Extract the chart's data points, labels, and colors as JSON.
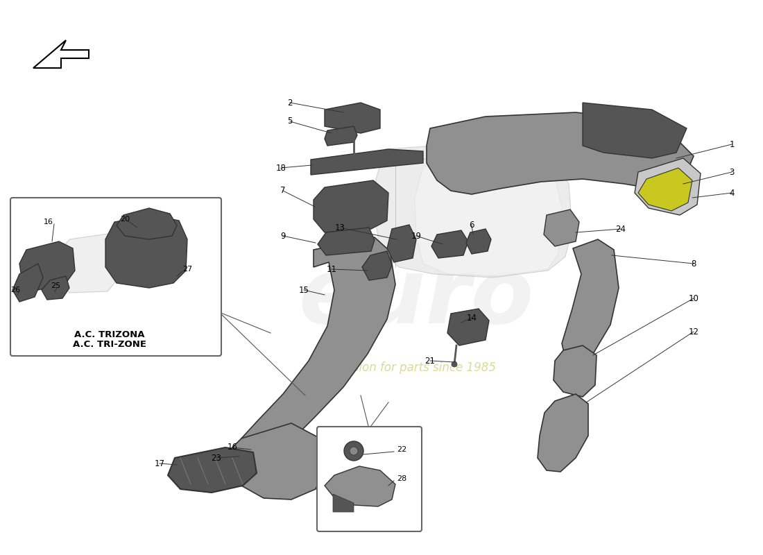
{
  "background_color": "#ffffff",
  "fig_width": 11.0,
  "fig_height": 8.0,
  "part_colors": {
    "medium_gray": "#909090",
    "dark_gray": "#555555",
    "light_gray": "#c8c8c8",
    "very_light_gray": "#e0e0e0",
    "outline": "#333333",
    "yellow_detail": "#c8c820",
    "white": "#ffffff",
    "ghost": "#d0d0d0"
  },
  "watermark_text": "a passion for parts since 1985",
  "inset_label_it": "A.C. TRIZONA",
  "inset_label_en": "A.C. TRI-ZONE",
  "label_fontsize": 8.5,
  "line_color": "#222222",
  "leader_color": "#333333"
}
